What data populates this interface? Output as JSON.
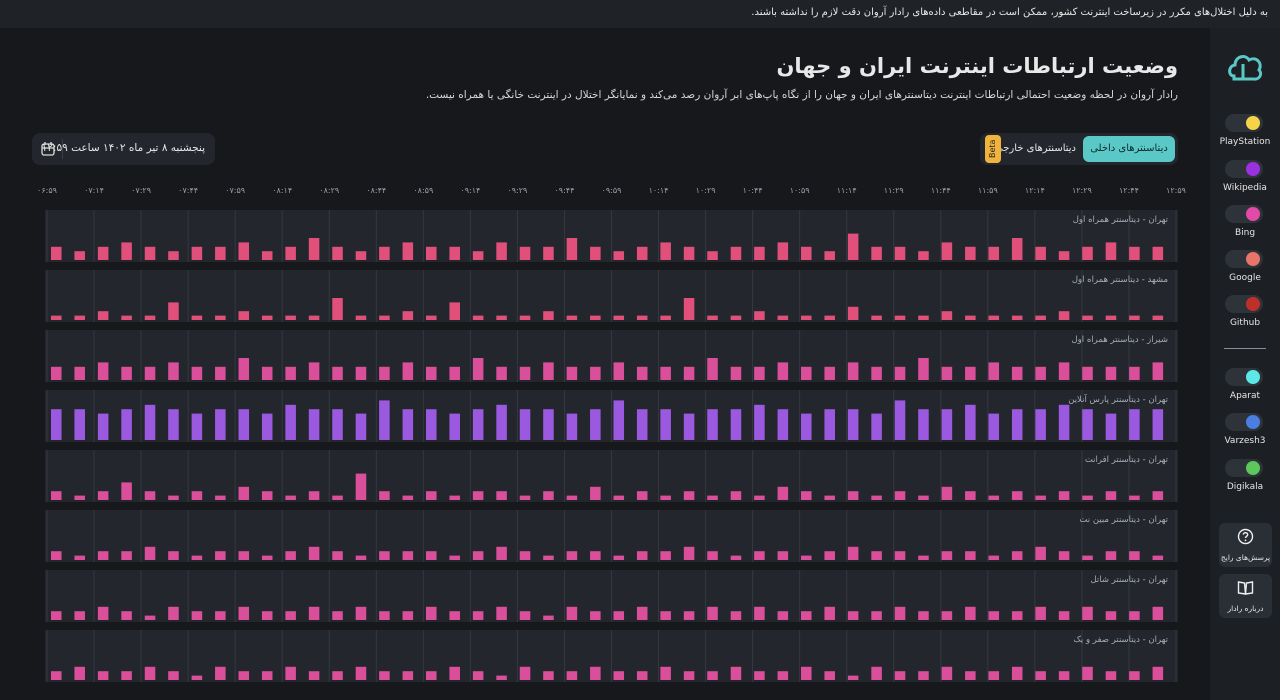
{
  "banner": "به دلیل اختلال‌های مکرر در زیرساخت اینترنت کشور، ممکن است در مقاطعی داده‌های رادار آروان دقت لازم را نداشته باشند.",
  "header": {
    "title": "وضعیت ارتباطات اینترنت ایران و جهان",
    "subtitle": "رادار آروان در لحظه وضعیت احتمالی ارتباطات اینترنت دیتاسنترهای ایران و جهان را از نگاه پاپ‌های ابر آروان رصد می‌کند و نمایانگر اختلال در اینترنت خانگی یا همراه نیست."
  },
  "date": "پنجشنبه ۸ تیر ماه ۱۴۰۲ ساعت ۱۲:۵۹",
  "tabs": {
    "internal": "دیتاسنترهای داخلی",
    "external": "دیتاسنترهای خارجی",
    "beta": "Beta"
  },
  "timeline": [
    "۰۶:۵۹",
    "۰۷:۱۴",
    "۰۷:۲۹",
    "۰۷:۴۴",
    "۰۷:۵۹",
    "۰۸:۱۴",
    "۰۸:۲۹",
    "۰۸:۴۴",
    "۰۸:۵۹",
    "۰۹:۱۴",
    "۰۹:۲۹",
    "۰۹:۴۴",
    "۰۹:۵۹",
    "۱۰:۱۴",
    "۱۰:۲۹",
    "۱۰:۴۴",
    "۱۰:۵۹",
    "۱۱:۱۴",
    "۱۱:۲۹",
    "۱۱:۴۴",
    "۱۱:۵۹",
    "۱۲:۱۴",
    "۱۲:۲۹",
    "۱۲:۴۴",
    "۱۲:۵۹"
  ],
  "ylim": [
    0,
    10
  ],
  "panels": [
    {
      "label": "تهران - دیتاسنتر همراه اول",
      "color": "#e0507a",
      "values": [
        3,
        2,
        3,
        4,
        3,
        2,
        3,
        3,
        4,
        2,
        3,
        5,
        3,
        2,
        3,
        4,
        3,
        3,
        2,
        4,
        3,
        3,
        5,
        3,
        2,
        3,
        4,
        3,
        2,
        3,
        3,
        4,
        3,
        2,
        6,
        3,
        3,
        2,
        4,
        3,
        3,
        5,
        3,
        2,
        3,
        4,
        3,
        3
      ]
    },
    {
      "label": "مشهد - دیتاسنتر همراه اول",
      "color": "#e0507a",
      "values": [
        1,
        1,
        2,
        1,
        1,
        4,
        1,
        1,
        2,
        1,
        1,
        1,
        5,
        1,
        1,
        2,
        1,
        4,
        1,
        1,
        1,
        2,
        1,
        1,
        1,
        1,
        1,
        5,
        1,
        1,
        2,
        1,
        1,
        1,
        3,
        1,
        1,
        1,
        2,
        1,
        1,
        1,
        1,
        2,
        1,
        1,
        1,
        1
      ]
    },
    {
      "label": "شیراز - دیتاسنتر همراه اول",
      "color": "#d94f9a",
      "values": [
        3,
        3,
        4,
        3,
        3,
        4,
        3,
        3,
        5,
        3,
        3,
        4,
        3,
        3,
        3,
        4,
        3,
        3,
        5,
        3,
        3,
        4,
        3,
        3,
        4,
        3,
        3,
        3,
        5,
        3,
        3,
        4,
        3,
        3,
        4,
        3,
        3,
        5,
        3,
        3,
        4,
        3,
        3,
        4,
        3,
        3,
        3,
        4
      ]
    },
    {
      "label": "تهران - دیتاسنتر پارس آنلاین",
      "color": "#9b59e0",
      "values": [
        7,
        7,
        6,
        7,
        8,
        7,
        6,
        7,
        7,
        6,
        8,
        7,
        7,
        6,
        9,
        7,
        7,
        6,
        7,
        8,
        7,
        7,
        6,
        7,
        9,
        7,
        7,
        6,
        7,
        7,
        8,
        7,
        6,
        7,
        7,
        6,
        9,
        7,
        7,
        8,
        6,
        7,
        7,
        8,
        7,
        6,
        7,
        7
      ]
    },
    {
      "label": "تهران - دیتاسنتر افرانت",
      "color": "#d94f9a",
      "values": [
        2,
        1,
        2,
        4,
        2,
        1,
        2,
        1,
        3,
        2,
        1,
        2,
        1,
        6,
        2,
        1,
        2,
        1,
        2,
        2,
        1,
        2,
        1,
        3,
        1,
        2,
        1,
        2,
        1,
        2,
        1,
        3,
        2,
        1,
        2,
        1,
        2,
        1,
        3,
        2,
        1,
        2,
        1,
        2,
        1,
        2,
        1,
        2
      ]
    },
    {
      "label": "تهران - دیتاسنتر مبین نت",
      "color": "#d94f9a",
      "values": [
        2,
        1,
        2,
        2,
        3,
        2,
        1,
        2,
        2,
        1,
        2,
        3,
        2,
        1,
        2,
        2,
        2,
        1,
        2,
        3,
        2,
        1,
        2,
        2,
        1,
        2,
        2,
        3,
        2,
        1,
        2,
        2,
        1,
        2,
        3,
        2,
        2,
        1,
        2,
        2,
        1,
        2,
        3,
        2,
        1,
        2,
        2,
        1
      ]
    },
    {
      "label": "تهران - دیتاسنتر شاتل",
      "color": "#d94f9a",
      "values": [
        2,
        2,
        3,
        2,
        1,
        3,
        2,
        2,
        3,
        2,
        2,
        3,
        2,
        3,
        2,
        2,
        3,
        2,
        2,
        3,
        2,
        1,
        3,
        2,
        2,
        3,
        2,
        2,
        3,
        2,
        3,
        2,
        2,
        3,
        2,
        2,
        3,
        2,
        2,
        3,
        2,
        2,
        3,
        2,
        3,
        2,
        2,
        3
      ]
    },
    {
      "label": "تهران - دیتاسنتر صفر و یک",
      "color": "#d94f9a",
      "values": [
        2,
        3,
        2,
        2,
        3,
        2,
        1,
        3,
        2,
        2,
        3,
        2,
        2,
        3,
        2,
        2,
        2,
        3,
        2,
        1,
        3,
        2,
        2,
        3,
        2,
        2,
        3,
        2,
        2,
        3,
        2,
        2,
        3,
        2,
        1,
        3,
        2,
        2,
        3,
        2,
        2,
        3,
        2,
        2,
        3,
        2,
        2,
        3
      ]
    }
  ],
  "sidebar": {
    "items": [
      {
        "name": "PlayStation",
        "color": "#f5d547"
      },
      {
        "name": "Wikipedia",
        "color": "#9b30e0"
      },
      {
        "name": "Bing",
        "color": "#e24aa8"
      },
      {
        "name": "Google",
        "color": "#e8756a"
      },
      {
        "name": "Github",
        "color": "#c0302a"
      },
      {
        "name": "Aparat",
        "color": "#5de8e8"
      },
      {
        "name": "Varzesh3",
        "color": "#4a7ee0"
      },
      {
        "name": "Digikala",
        "color": "#5cc85c"
      }
    ],
    "faq": "پرسش‌های رایج",
    "about": "درباره رادار"
  }
}
